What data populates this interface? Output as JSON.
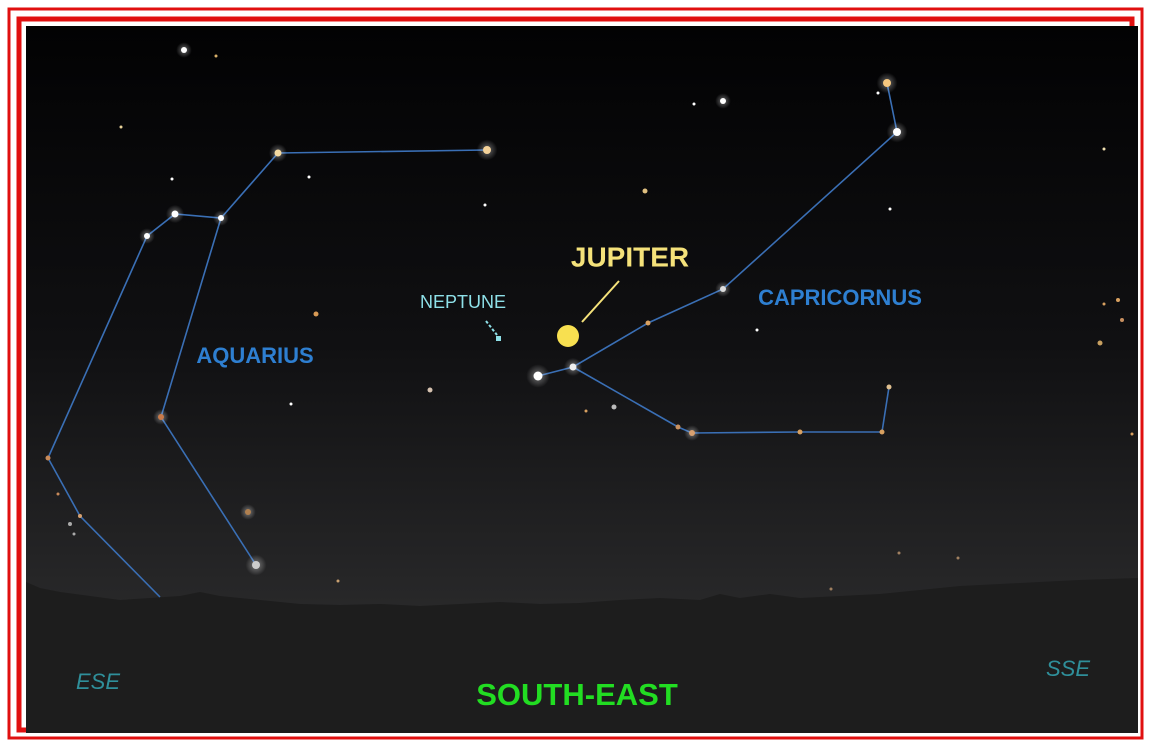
{
  "labels": {
    "planet": "JUPITER",
    "faint_planet": "NEPTUNE",
    "constellation_right": "CAPRICORNUS",
    "constellation_left": "AQUARIUS"
  },
  "directions": {
    "center": "SOUTH-EAST",
    "left": "ESE",
    "right": "SSE"
  }
}
